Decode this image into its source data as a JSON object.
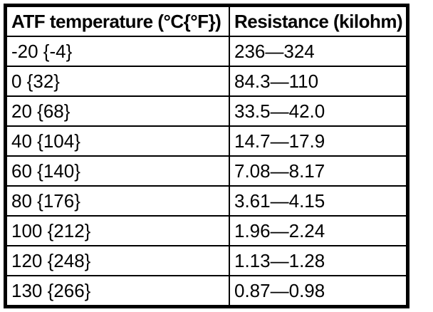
{
  "chart_data": {
    "type": "table",
    "columns": [
      "ATF temperature (°C{°F})",
      "Resistance (kilohm)"
    ],
    "rows": [
      {
        "temperature": "-20 {-4}",
        "resistance": "236—324"
      },
      {
        "temperature": "0 {32}",
        "resistance": "84.3—110"
      },
      {
        "temperature": "20 {68}",
        "resistance": "33.5—42.0"
      },
      {
        "temperature": "40 {104}",
        "resistance": "14.7—17.9"
      },
      {
        "temperature": "60 {140}",
        "resistance": "7.08—8.17"
      },
      {
        "temperature": "80 {176}",
        "resistance": "3.61—4.15"
      },
      {
        "temperature": "100 {212}",
        "resistance": "1.96—2.24"
      },
      {
        "temperature": "120 {248}",
        "resistance": "1.13—1.28"
      },
      {
        "temperature": "130 {266}",
        "resistance": "0.87—0.98"
      }
    ]
  },
  "colors": {
    "text": "#000000",
    "border": "#000000",
    "background": "#ffffff"
  }
}
